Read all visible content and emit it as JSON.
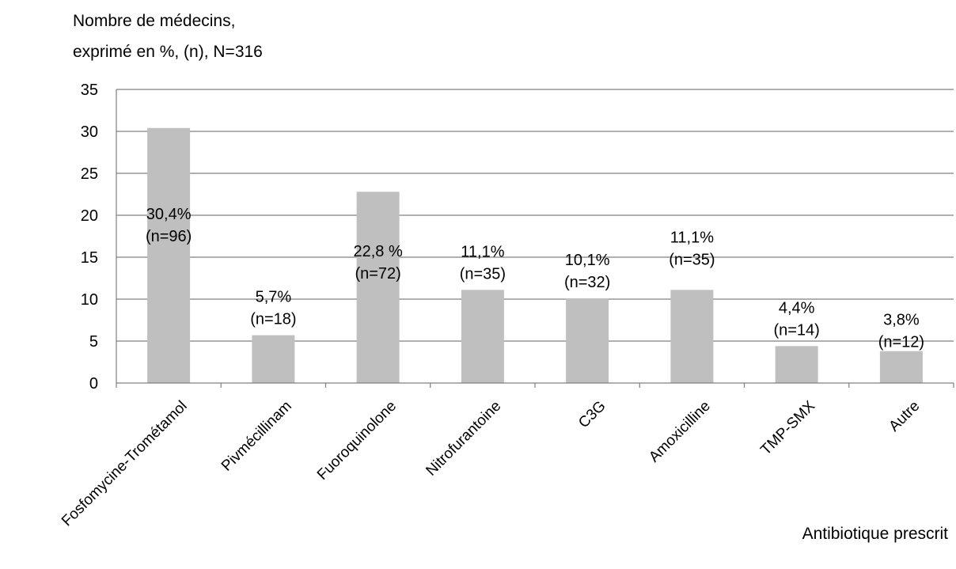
{
  "chart_data": {
    "type": "bar",
    "ylabel_lines": [
      "Nombre de médecins,",
      "exprimé en %, (n), N=316"
    ],
    "xlabel": "Antibiotique prescrit",
    "categories": [
      "Fosfomycine-Trométamol",
      "Pivmécillinam",
      "Fuoroquinolone",
      "Nitrofurantoine",
      "C3G",
      "Amoxicilline",
      "TMP-SMX",
      "Autre"
    ],
    "values": [
      30.4,
      5.7,
      22.8,
      11.1,
      10.1,
      11.1,
      4.4,
      3.8
    ],
    "data_labels": [
      [
        "30,4%",
        "(n=96)"
      ],
      [
        "5,7%",
        "(n=18)"
      ],
      [
        "22,8 %",
        "(n=72)"
      ],
      [
        "11,1%",
        "(n=35)"
      ],
      [
        "10,1%",
        "(n=32)"
      ],
      [
        "11,1%",
        "(n=35)"
      ],
      [
        "4,4%",
        "(n=14)"
      ],
      [
        "3,8%",
        "(n=12)"
      ]
    ],
    "yticks": [
      "0",
      "5",
      "10",
      "15",
      "20",
      "25",
      "30",
      "35"
    ],
    "ylim": [
      0,
      35
    ],
    "grid": true,
    "bar_color": "#bfbfbf",
    "grid_color": "#808080"
  }
}
